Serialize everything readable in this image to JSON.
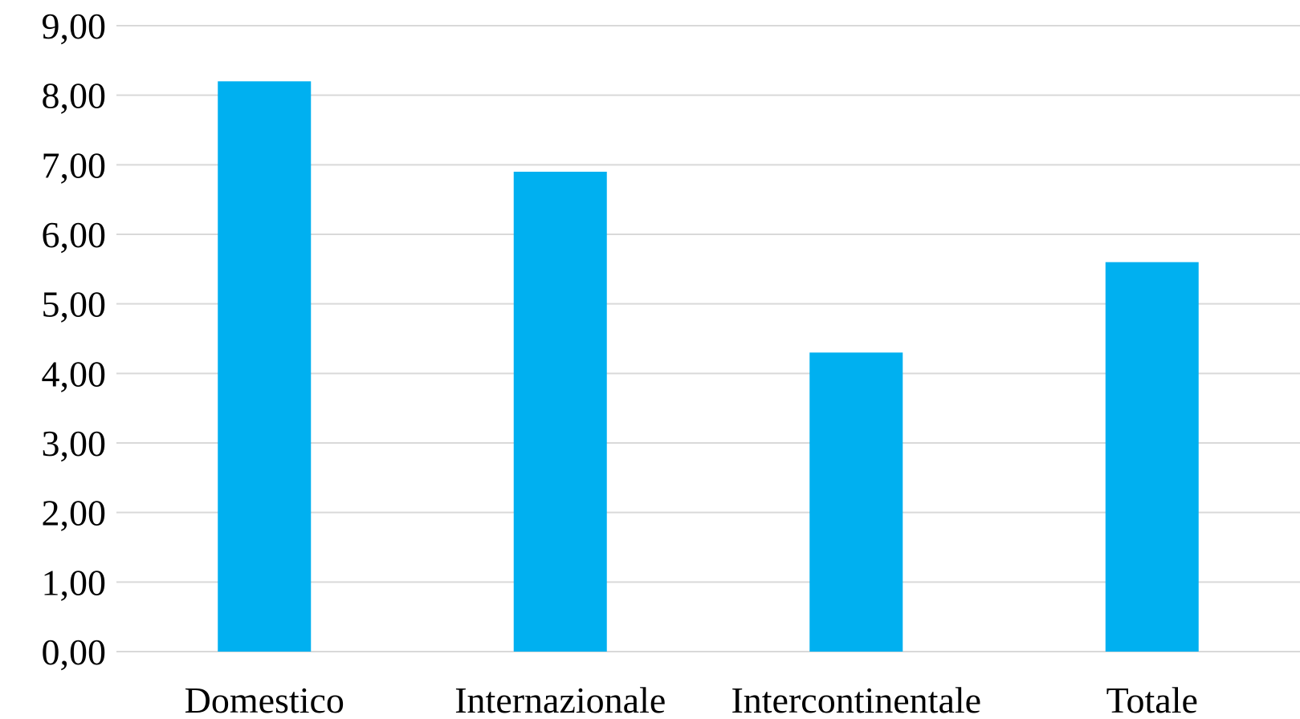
{
  "chart_data": {
    "type": "bar",
    "title": "",
    "xlabel": "",
    "ylabel": "",
    "categories": [
      "Domestico",
      "Internazionale",
      "Intercontinentale",
      "Totale"
    ],
    "values": [
      8.2,
      6.9,
      4.3,
      5.6
    ],
    "ylim": [
      0,
      9
    ],
    "yticks": [
      "0,00",
      "1,00",
      "2,00",
      "3,00",
      "4,00",
      "5,00",
      "6,00",
      "7,00",
      "8,00",
      "9,00"
    ],
    "grid": true,
    "legend": "none",
    "bar_color": "#00b0f0"
  }
}
